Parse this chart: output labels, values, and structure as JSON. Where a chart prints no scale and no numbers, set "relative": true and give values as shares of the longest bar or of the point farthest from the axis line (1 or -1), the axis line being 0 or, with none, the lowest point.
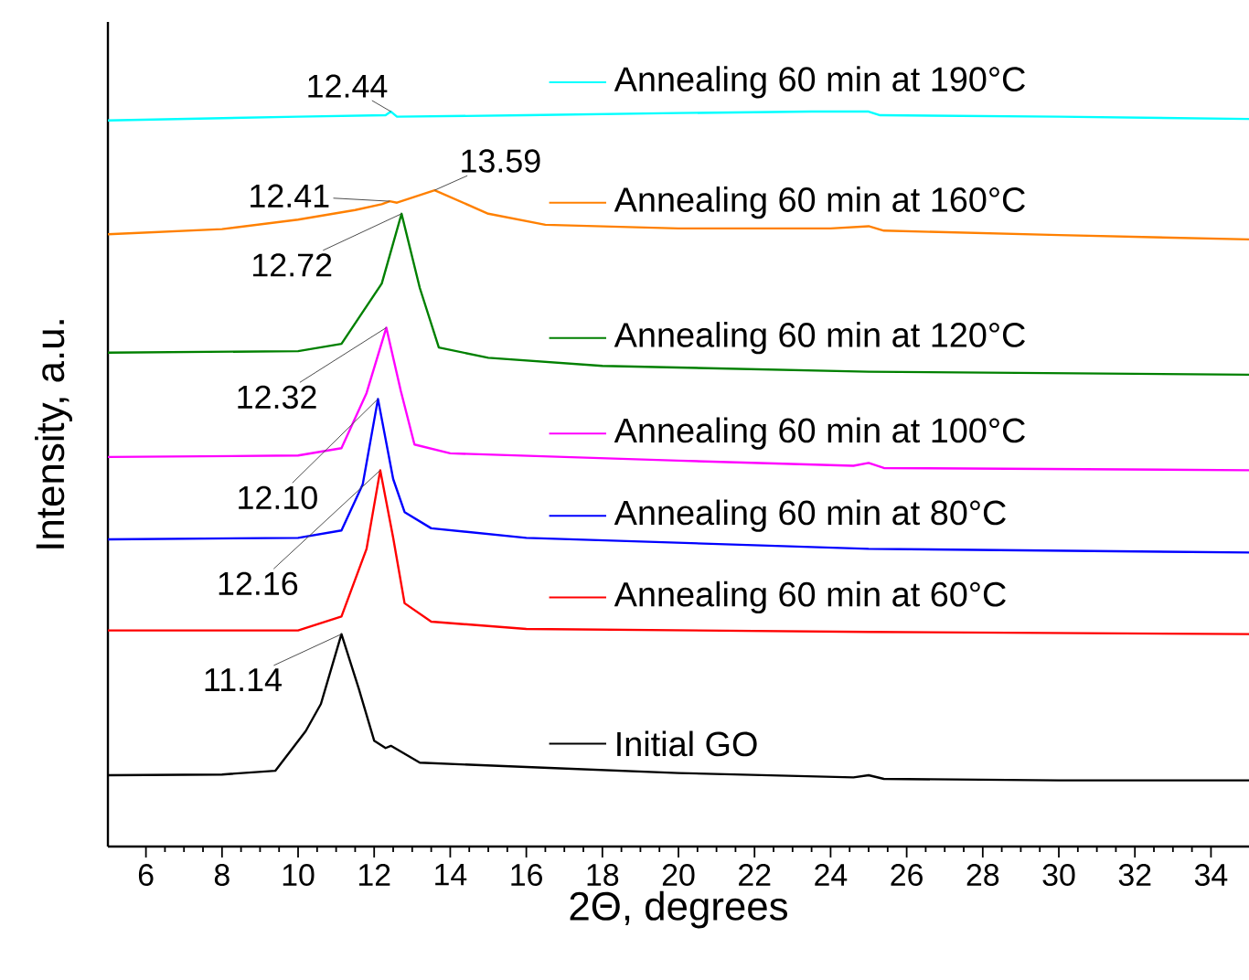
{
  "chart_data": {
    "type": "line",
    "relative": true,
    "xlabel": "2Θ, degrees",
    "ylabel": "Intensity, a.u.",
    "xlim": [
      5,
      35
    ],
    "xticks": [
      6,
      8,
      10,
      12,
      14,
      16,
      18,
      20,
      22,
      24,
      26,
      28,
      30,
      32,
      34
    ],
    "marker": "none",
    "line_style": "solid",
    "grid": false,
    "legend": "right",
    "series": [
      {
        "name": "Initial GO",
        "color": "#000000",
        "x": [
          5,
          8,
          9.4,
          10.2,
          10.6,
          11.14,
          11.6,
          12.0,
          12.3,
          12.44,
          13.2,
          16.6,
          20,
          24.6,
          25,
          25.4,
          30,
          35
        ],
        "values": [
          0.097,
          0.098,
          0.103,
          0.157,
          0.194,
          0.289,
          0.214,
          0.144,
          0.134,
          0.137,
          0.114,
          0.107,
          0.1,
          0.094,
          0.097,
          0.092,
          0.09,
          0.09
        ]
      },
      {
        "name": "Annealing 60 min at 60°C",
        "color": "#ff0000",
        "x": [
          5,
          10,
          11.14,
          11.8,
          12.16,
          12.5,
          12.8,
          13.5,
          16,
          25,
          35
        ],
        "values": [
          0.294,
          0.294,
          0.313,
          0.405,
          0.512,
          0.42,
          0.331,
          0.306,
          0.296,
          0.292,
          0.289
        ]
      },
      {
        "name": "Annealing 60 min at 80°C",
        "color": "#0000ff",
        "x": [
          5,
          10,
          11.14,
          11.7,
          12.1,
          12.5,
          12.8,
          13.5,
          16,
          25,
          35
        ],
        "values": [
          0.418,
          0.42,
          0.43,
          0.493,
          0.609,
          0.5,
          0.455,
          0.433,
          0.42,
          0.405,
          0.4
        ]
      },
      {
        "name": "Annealing 60 min at 100°C",
        "color": "#ff00ff",
        "x": [
          5,
          10,
          11.14,
          11.8,
          12.32,
          12.7,
          13.06,
          14,
          20,
          24.6,
          25,
          25.4,
          35
        ],
        "values": [
          0.53,
          0.532,
          0.542,
          0.617,
          0.706,
          0.62,
          0.547,
          0.535,
          0.525,
          0.518,
          0.522,
          0.515,
          0.512
        ]
      },
      {
        "name": "Annealing 60 min at 120°C",
        "color": "#008000",
        "x": [
          5,
          10,
          11.14,
          12.2,
          12.72,
          13.2,
          13.7,
          15,
          18,
          25,
          35
        ],
        "values": [
          0.672,
          0.674,
          0.684,
          0.766,
          0.861,
          0.76,
          0.679,
          0.665,
          0.654,
          0.646,
          0.642
        ]
      },
      {
        "name": "Annealing 60 min at 160°C",
        "color": "#ff8000",
        "x": [
          5,
          8,
          10,
          11.5,
          12.2,
          12.41,
          12.6,
          13.59,
          15,
          16.5,
          20,
          24,
          25,
          25.4,
          30,
          35
        ],
        "values": [
          0.833,
          0.84,
          0.853,
          0.866,
          0.874,
          0.878,
          0.876,
          0.893,
          0.861,
          0.846,
          0.841,
          0.841,
          0.844,
          0.838,
          0.832,
          0.826
        ]
      },
      {
        "name": "Annealing 60 min at 190°C",
        "color": "#00ffff",
        "x": [
          5,
          10,
          12.3,
          12.44,
          12.6,
          16,
          20,
          23.5,
          25,
          25.3,
          30,
          35
        ],
        "values": [
          0.988,
          0.993,
          0.995,
          1.0,
          0.993,
          0.995,
          0.998,
          1.0,
          1.0,
          0.995,
          0.993,
          0.99
        ]
      }
    ],
    "annotations": [
      {
        "text": "12.44",
        "x": 12.44,
        "y": 1.0
      },
      {
        "text": "13.59",
        "x": 13.59,
        "y": 0.893
      },
      {
        "text": "12.41",
        "x": 12.41,
        "y": 0.878
      },
      {
        "text": "12.72",
        "x": 12.72,
        "y": 0.861
      },
      {
        "text": "12.32",
        "x": 12.32,
        "y": 0.706
      },
      {
        "text": "12.10",
        "x": 12.1,
        "y": 0.609
      },
      {
        "text": "12.16",
        "x": 12.16,
        "y": 0.512
      },
      {
        "text": "11.14",
        "x": 11.14,
        "y": 0.289
      }
    ]
  }
}
